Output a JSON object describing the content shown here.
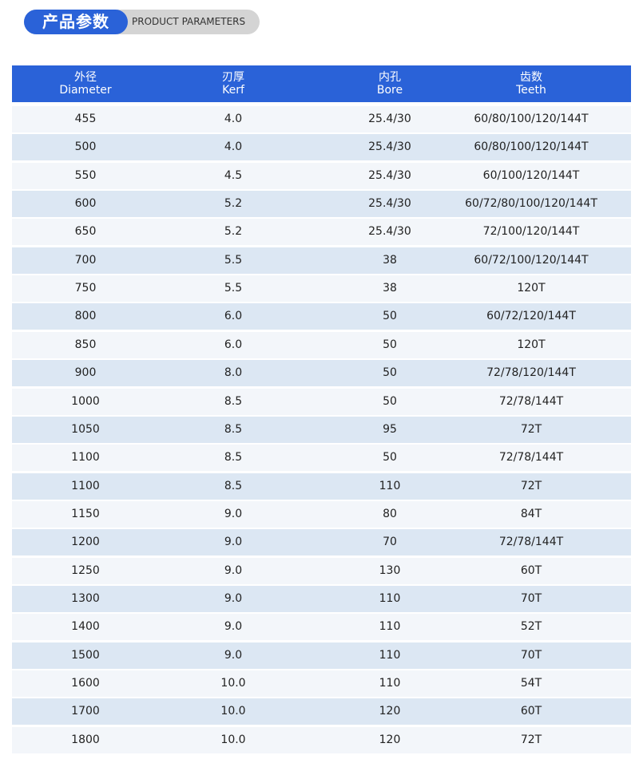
{
  "header": {
    "title": "产品参数",
    "subtitle": "PRODUCT PARAMETERS"
  },
  "table": {
    "columns": [
      {
        "zh": "外径",
        "en": "Diameter"
      },
      {
        "zh": "刃厚",
        "en": "Kerf"
      },
      {
        "zh": "内孔",
        "en": "Bore"
      },
      {
        "zh": "齿数",
        "en": "Teeth"
      }
    ],
    "rows": [
      [
        "455",
        "4.0",
        "25.4/30",
        "60/80/100/120/144T"
      ],
      [
        "500",
        "4.0",
        "25.4/30",
        "60/80/100/120/144T"
      ],
      [
        "550",
        "4.5",
        "25.4/30",
        "60/100/120/144T"
      ],
      [
        "600",
        "5.2",
        "25.4/30",
        "60/72/80/100/120/144T"
      ],
      [
        "650",
        "5.2",
        "25.4/30",
        "72/100/120/144T"
      ],
      [
        "700",
        "5.5",
        "38",
        "60/72/100/120/144T"
      ],
      [
        "750",
        "5.5",
        "38",
        "120T"
      ],
      [
        "800",
        "6.0",
        "50",
        "60/72/120/144T"
      ],
      [
        "850",
        "6.0",
        "50",
        "120T"
      ],
      [
        "900",
        "8.0",
        "50",
        "72/78/120/144T"
      ],
      [
        "1000",
        "8.5",
        "50",
        "72/78/144T"
      ],
      [
        "1050",
        "8.5",
        "95",
        "72T"
      ],
      [
        "1100",
        "8.5",
        "50",
        "72/78/144T"
      ],
      [
        "1100",
        "8.5",
        "110",
        "72T"
      ],
      [
        "1150",
        "9.0",
        "80",
        "84T"
      ],
      [
        "1200",
        "9.0",
        "70",
        "72/78/144T"
      ],
      [
        "1250",
        "9.0",
        "130",
        "60T"
      ],
      [
        "1300",
        "9.0",
        "110",
        "70T"
      ],
      [
        "1400",
        "9.0",
        "110",
        "52T"
      ],
      [
        "1500",
        "9.0",
        "110",
        "70T"
      ],
      [
        "1600",
        "10.0",
        "110",
        "54T"
      ],
      [
        "1700",
        "10.0",
        "120",
        "60T"
      ],
      [
        "1800",
        "10.0",
        "120",
        "72T"
      ]
    ]
  }
}
